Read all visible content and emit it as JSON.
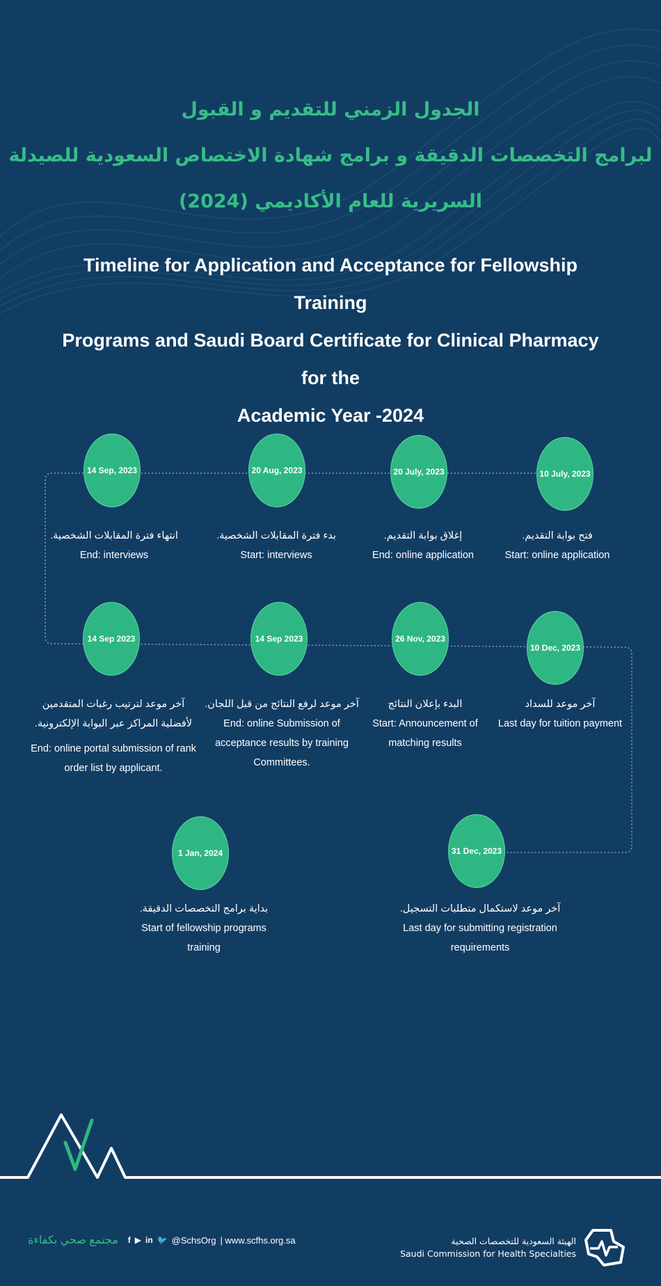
{
  "header": {
    "ar_lines": [
      "الجدول الزمني للتقديم و القبول",
      "لبرامج التخصصات الدقيقة و برامج شهادة الاختصاص السعودية للصيدلة",
      "السريرية للعام الأكاديمي (2024)"
    ],
    "en_lines": [
      "Timeline for Application and Acceptance for Fellowship Training",
      "Programs and Saudi Board Certificate for Clinical Pharmacy for the",
      "Academic Year -2024"
    ]
  },
  "timeline": [
    {
      "date": "10 July, 2023",
      "ar": "فتح بوابة التقديم.",
      "en": "Start: online application"
    },
    {
      "date": "20 July, 2023",
      "ar": "إغلاق بوابة التقديم.",
      "en": "End: online application"
    },
    {
      "date": "20 Aug, 2023",
      "ar": "بدء فترة المقابلات الشخصية.",
      "en": "Start: interviews"
    },
    {
      "date": "14 Sep, 2023",
      "ar": "انتهاء فترة المقابلات الشخصية.",
      "en": "End: interviews"
    },
    {
      "date": "10 Dec, 2023",
      "ar": "آخر موعد للسداد",
      "en": "Last day for tuition payment"
    },
    {
      "date": "26 Nov, 2023",
      "ar": "البدء بإعلان النتائج",
      "en": "Start: Announcement of matching results"
    },
    {
      "date": "14 Sep 2023",
      "ar": "آخر موعد لرفع النتائج من قبل اللجان.",
      "en": "End: online Submission of acceptance results by training Committees."
    },
    {
      "date": "14 Sep 2023",
      "ar": "آخر موعد لترتيب رغبات المتقدمين لأفضلية المراكز عبر البوابة الإلكترونية.",
      "en": "End: online portal submission of rank order list by applicant."
    },
    {
      "date": "31 Dec, 2023",
      "ar": "آخر موعد لاستكمال متطلبات التسجيل.",
      "en": "Last day for submitting registration requirements"
    },
    {
      "date": "1 Jan, 2024",
      "ar": "بداية برامج التخصصات الدقيقة.",
      "en": "Start of fellowship programs training"
    }
  ],
  "footer": {
    "slogan": "مجتمع صحي بكفاءة",
    "social_icons": [
      "facebook-icon",
      "youtube-icon",
      "linkedin-icon",
      "twitter-icon"
    ],
    "social_glyphs": {
      "facebook": "f",
      "youtube": "▶",
      "linkedin": "in",
      "twitter": "🐦"
    },
    "handle": "@SchsOrg",
    "website": "| www.scfhs.org.sa",
    "org_ar": "الهيئة السعودية للتخصصات الصحية",
    "org_en": "Saudi Commission for Health Specialties"
  },
  "colors": {
    "background": "#123d63",
    "accent": "#2fb783",
    "title_green": "#37bd86"
  }
}
